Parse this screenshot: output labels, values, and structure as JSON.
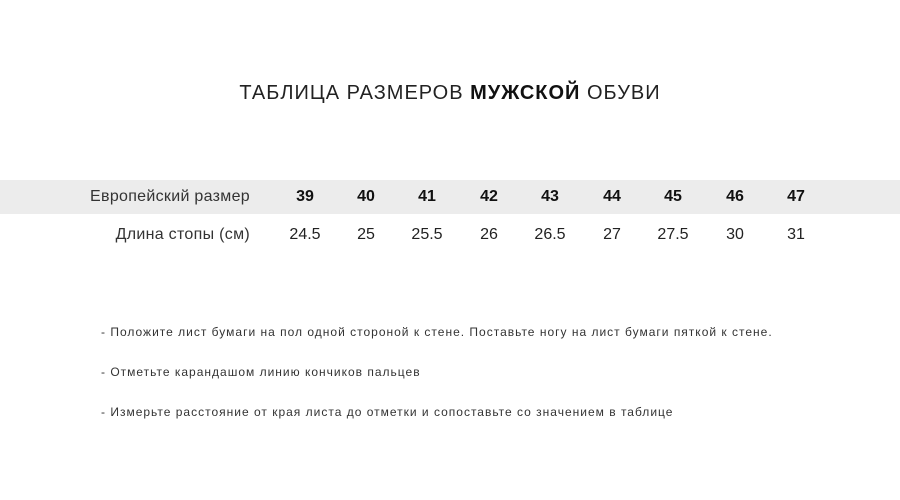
{
  "title": {
    "prefix": "ТАБЛИЦА РАЗМЕРОВ",
    "bold": "МУЖСКОЙ",
    "suffix": "ОБУВИ"
  },
  "table": {
    "rows": [
      {
        "label": "Европейский размер",
        "values": [
          "39",
          "40",
          "41",
          "42",
          "43",
          "44",
          "45",
          "46",
          "47"
        ]
      },
      {
        "label": "Длина стопы (см)",
        "values": [
          "24.5",
          "25",
          "25.5",
          "26",
          "26.5",
          "27",
          "27.5",
          "30",
          "31"
        ]
      }
    ]
  },
  "instructions": [
    "- Положите лист бумаги на пол одной стороной к стене. Поставьте ногу на лист бумаги пяткой к стене.",
    "- Отметьте карандашом линию кончиков пальцев",
    "- Измерьте расстояние от края листа до отметки и сопоставьте со значением в таблице"
  ]
}
